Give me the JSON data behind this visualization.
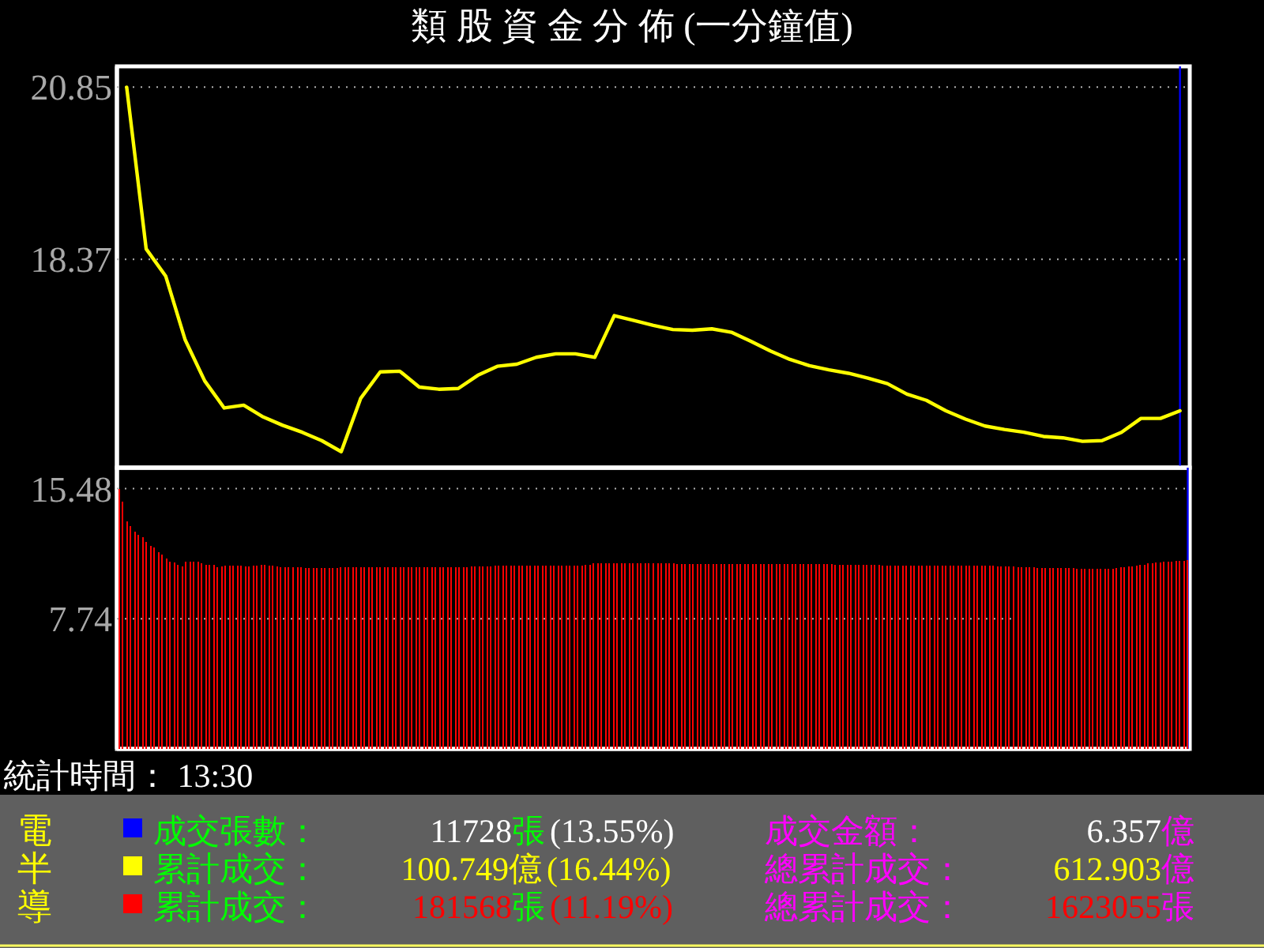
{
  "chart_data": [
    {
      "type": "line",
      "title": "類 股 資 金 分 佈 (一分鐘值)",
      "categories": [
        null,
        null,
        null,
        null,
        null,
        null,
        null,
        null,
        null,
        null,
        null,
        null,
        null,
        null,
        null,
        null,
        null,
        null,
        null,
        null,
        null,
        null,
        null,
        null,
        null,
        null,
        null,
        null,
        null,
        null,
        null,
        null,
        null,
        null,
        null,
        null,
        null,
        null,
        null,
        null,
        null,
        null,
        null,
        null,
        null,
        null,
        null,
        null,
        null,
        null,
        null,
        null,
        null,
        null,
        null
      ],
      "ylim": [
        15.37,
        21.15
      ],
      "yticks": [
        20.85,
        18.37
      ],
      "grid": "y",
      "tick_labels": "y",
      "series": [
        {
          "color": "#ffff00",
          "values": [
            20.85,
            18.52,
            18.13,
            17.21,
            16.62,
            16.23,
            16.27,
            16.1,
            15.98,
            15.88,
            15.76,
            15.6,
            16.37,
            16.75,
            16.76,
            16.53,
            16.5,
            16.51,
            16.7,
            16.83,
            16.86,
            16.96,
            17.01,
            17.01,
            16.96,
            17.56,
            17.49,
            17.42,
            17.36,
            17.35,
            17.37,
            17.32,
            17.19,
            17.05,
            16.93,
            16.84,
            16.78,
            16.73,
            16.66,
            16.58,
            16.43,
            16.34,
            16.19,
            16.07,
            15.97,
            15.92,
            15.88,
            15.82,
            15.8,
            15.75,
            15.76,
            15.88,
            16.08,
            16.08,
            16.19
          ]
        }
      ],
      "annotations": [
        "統計時間： 13:30"
      ]
    },
    {
      "type": "bar",
      "categories": [
        null,
        null,
        null,
        null,
        null,
        null,
        null,
        null,
        null,
        null,
        null,
        null,
        null,
        null,
        null,
        null,
        null,
        null,
        null,
        null,
        null,
        null,
        null,
        null,
        null,
        null,
        null,
        null,
        null,
        null,
        null,
        null,
        null,
        null,
        null,
        null,
        null,
        null,
        null,
        null,
        null,
        null,
        null,
        null,
        null,
        null,
        null,
        null,
        null,
        null,
        null,
        null,
        null,
        null,
        null,
        null,
        null,
        null,
        null,
        null,
        null,
        null,
        null,
        null,
        null,
        null,
        null,
        null,
        null,
        null,
        null,
        null,
        null,
        null,
        null,
        null,
        null,
        null,
        null,
        null,
        null,
        null,
        null,
        null,
        null,
        null,
        null,
        null,
        null,
        null,
        null,
        null,
        null,
        null,
        null,
        null,
        null,
        null,
        null,
        null,
        null,
        null,
        null,
        null,
        null,
        null,
        null,
        null,
        null,
        null,
        null,
        null,
        null,
        null,
        null,
        null,
        null,
        null,
        null,
        null,
        null,
        null,
        null,
        null,
        null,
        null,
        null,
        null,
        null,
        null,
        null,
        null,
        null,
        null,
        null,
        null,
        null,
        null,
        null,
        null,
        null,
        null,
        null,
        null,
        null,
        null,
        null,
        null,
        null,
        null,
        null,
        null,
        null,
        null,
        null,
        null,
        null,
        null,
        null,
        null,
        null,
        null,
        null,
        null,
        null,
        null,
        null,
        null,
        null,
        null,
        null,
        null,
        null,
        null,
        null,
        null,
        null,
        null,
        null,
        null,
        null,
        null,
        null,
        null,
        null,
        null,
        null,
        null,
        null,
        null,
        null,
        null,
        null,
        null,
        null,
        null,
        null,
        null,
        null,
        null,
        null,
        null,
        null,
        null,
        null,
        null,
        null,
        null,
        null,
        null,
        null,
        null,
        null,
        null,
        null,
        null,
        null,
        null,
        null,
        null,
        null,
        null,
        null,
        null,
        null,
        null,
        null,
        null,
        null,
        null,
        null,
        null,
        null,
        null,
        null,
        null,
        null,
        null,
        null,
        null,
        null,
        null,
        null,
        null,
        null,
        null,
        null,
        null,
        null,
        null,
        null,
        null,
        null,
        null,
        null,
        null,
        null,
        null,
        null,
        null,
        null,
        null,
        null,
        null,
        null,
        null,
        null,
        null,
        null,
        null,
        null
      ],
      "ylim": [
        0,
        16.73
      ],
      "yticks": [
        15.48,
        7.74
      ],
      "grid": "y",
      "tick_labels": "y",
      "series": [
        {
          "color": "#ff0000",
          "values": [
            15.48,
            14.73,
            13.55,
            13.27,
            12.94,
            12.73,
            12.59,
            12.32,
            12.08,
            11.98,
            11.71,
            11.57,
            11.31,
            11.13,
            11.1,
            10.96,
            10.86,
            11.13,
            11.13,
            11.13,
            11.13,
            11.03,
            10.96,
            10.96,
            10.96,
            10.8,
            10.86,
            10.9,
            10.9,
            10.9,
            10.9,
            10.9,
            10.86,
            10.86,
            10.9,
            10.9,
            10.96,
            10.96,
            10.9,
            10.9,
            10.86,
            10.8,
            10.8,
            10.8,
            10.8,
            10.8,
            10.8,
            10.76,
            10.76,
            10.76,
            10.76,
            10.76,
            10.76,
            10.76,
            10.76,
            10.76,
            10.8,
            10.8,
            10.8,
            10.8,
            10.8,
            10.8,
            10.8,
            10.8,
            10.8,
            10.8,
            10.8,
            10.8,
            10.8,
            10.8,
            10.8,
            10.8,
            10.8,
            10.8,
            10.8,
            10.8,
            10.8,
            10.8,
            10.8,
            10.8,
            10.8,
            10.8,
            10.8,
            10.8,
            10.8,
            10.8,
            10.8,
            10.8,
            10.8,
            10.86,
            10.86,
            10.86,
            10.86,
            10.86,
            10.86,
            10.9,
            10.9,
            10.9,
            10.9,
            10.9,
            10.9,
            10.9,
            10.9,
            10.9,
            10.9,
            10.9,
            10.9,
            10.9,
            10.9,
            10.9,
            10.9,
            10.9,
            10.9,
            10.9,
            10.9,
            10.9,
            10.9,
            10.9,
            10.96,
            10.96,
            11.03,
            11.03,
            11.03,
            11.03,
            11.03,
            11.03,
            11.03,
            11.03,
            11.03,
            11.03,
            11.03,
            11.03,
            11.03,
            11.03,
            11.03,
            11.03,
            11.03,
            11.03,
            11.03,
            11.03,
            11.03,
            11.0,
            11.0,
            11.0,
            11.0,
            11.0,
            11.0,
            11.0,
            11.0,
            11.0,
            11.0,
            11.0,
            11.0,
            11.0,
            11.0,
            11.0,
            11.0,
            11.0,
            11.0,
            11.0,
            11.0,
            11.0,
            11.0,
            11.0,
            11.0,
            11.0,
            11.0,
            11.0,
            11.0,
            11.0,
            11.0,
            11.0,
            11.0,
            11.0,
            11.0,
            11.0,
            11.0,
            11.0,
            11.0,
            11.0,
            11.0,
            10.96,
            10.96,
            10.96,
            10.96,
            10.96,
            10.96,
            10.96,
            10.96,
            10.96,
            10.96,
            10.96,
            10.96,
            10.9,
            10.9,
            10.9,
            10.9,
            10.9,
            10.9,
            10.9,
            10.9,
            10.9,
            10.9,
            10.9,
            10.9,
            10.9,
            10.9,
            10.9,
            10.9,
            10.9,
            10.9,
            10.9,
            10.9,
            10.9,
            10.9,
            10.9,
            10.9,
            10.9,
            10.9,
            10.9,
            10.9,
            10.9,
            10.86,
            10.86,
            10.86,
            10.86,
            10.86,
            10.8,
            10.8,
            10.8,
            10.8,
            10.8,
            10.76,
            10.76,
            10.76,
            10.76,
            10.76,
            10.76,
            10.76,
            10.76,
            10.76,
            10.76,
            10.73,
            10.73,
            10.73,
            10.73,
            10.73,
            10.73,
            10.73,
            10.73,
            10.73,
            10.73,
            10.76,
            10.8,
            10.8,
            10.86,
            10.86,
            10.9,
            10.96,
            10.96,
            11.03,
            11.03,
            11.1,
            11.1,
            11.13,
            11.13,
            11.13,
            11.17,
            11.17,
            11.2,
            11.24
          ]
        }
      ]
    },
    {
      "type": "other",
      "title": "電半導",
      "annotations": [
        "成交張數：",
        "11728",
        "張",
        "(13.55%)",
        "累計成交：",
        "100.749",
        "億",
        "(16.44%)",
        "累計成交：",
        "181568",
        "張",
        "(11.19%)",
        "成交金額：",
        "6.357",
        "億",
        "總累計成交：",
        "612.903",
        "億",
        "總累計成交：",
        "1623055",
        "張"
      ]
    }
  ]
}
